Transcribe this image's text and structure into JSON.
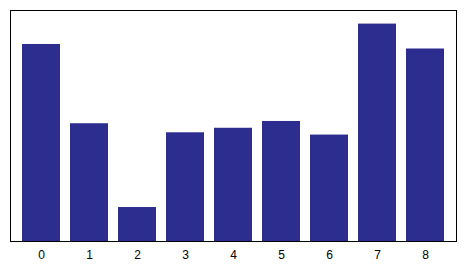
{
  "chart_data": {
    "type": "bar",
    "categories": [
      0,
      1,
      2,
      3,
      4,
      5,
      6,
      7,
      8
    ],
    "values": [
      0.87,
      0.52,
      0.15,
      0.48,
      0.5,
      0.53,
      0.47,
      0.96,
      0.85
    ],
    "color": "#2d2d8f",
    "ylim": [
      0,
      1.02
    ],
    "yticks": [],
    "tick_labels": "x"
  }
}
